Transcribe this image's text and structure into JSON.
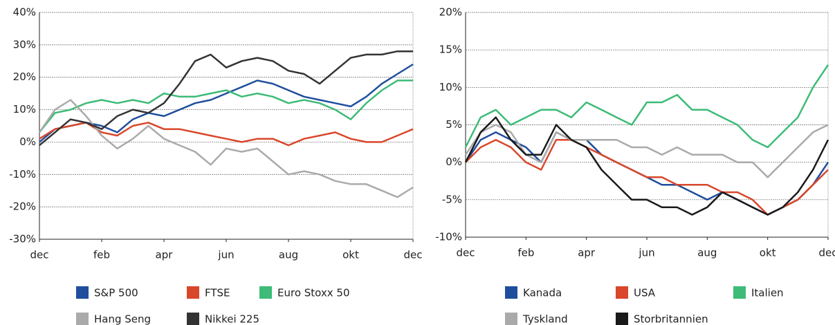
{
  "chart_data": [
    {
      "type": "line",
      "grid": true,
      "x": [
        0,
        0.5,
        1,
        1.5,
        2,
        2.5,
        3,
        3.5,
        4,
        4.5,
        5,
        5.5,
        6,
        6.5,
        7,
        7.5,
        8,
        8.5,
        9,
        9.5,
        10,
        10.5,
        11,
        11.5,
        12
      ],
      "xlim": [
        0,
        12
      ],
      "xticks": [
        {
          "value": 0,
          "label": "dec"
        },
        {
          "value": 2,
          "label": "feb"
        },
        {
          "value": 4,
          "label": "apr"
        },
        {
          "value": 6,
          "label": "jun"
        },
        {
          "value": 8,
          "label": "aug"
        },
        {
          "value": 10,
          "label": "okt"
        },
        {
          "value": 12,
          "label": "dec"
        }
      ],
      "ylim": [
        -30,
        40
      ],
      "yticks": [
        {
          "value": -30,
          "label": "-30%"
        },
        {
          "value": -20,
          "label": "-20%"
        },
        {
          "value": -10,
          "label": "-10%"
        },
        {
          "value": 0,
          "label": "0%"
        },
        {
          "value": 10,
          "label": "10%"
        },
        {
          "value": 20,
          "label": "20%"
        },
        {
          "value": 30,
          "label": "30%"
        },
        {
          "value": 40,
          "label": "40%"
        }
      ],
      "series": [
        {
          "name": "S&P 500",
          "color": "#1f4e9c",
          "values": [
            0,
            4,
            5,
            6,
            5,
            3,
            7,
            9,
            8,
            10,
            12,
            13,
            15,
            17,
            19,
            18,
            16,
            14,
            13,
            12,
            11,
            14,
            18,
            21,
            24
          ]
        },
        {
          "name": "FTSE",
          "color": "#d9472b",
          "values": [
            1,
            4,
            5,
            6,
            3,
            2,
            5,
            6,
            4,
            4,
            3,
            2,
            1,
            0,
            1,
            1,
            -1,
            1,
            2,
            3,
            1,
            0,
            0,
            2,
            4
          ]
        },
        {
          "name": "Euro Stoxx 50",
          "color": "#3dbb77",
          "values": [
            3,
            9,
            10,
            12,
            13,
            12,
            13,
            12,
            15,
            14,
            14,
            15,
            16,
            14,
            15,
            14,
            12,
            13,
            12,
            10,
            7,
            12,
            16,
            19,
            19
          ]
        },
        {
          "name": "Hang Seng",
          "color": "#aaaaaa",
          "values": [
            3,
            10,
            13,
            8,
            2,
            -2,
            1,
            5,
            1,
            -1,
            -3,
            -7,
            -2,
            -3,
            -2,
            -6,
            -10,
            -9,
            -10,
            -12,
            -13,
            -13,
            -15,
            -17,
            -14
          ]
        },
        {
          "name": "Nikkei 225",
          "color": "#333333",
          "values": [
            -1,
            3,
            7,
            6,
            4,
            8,
            10,
            9,
            12,
            18,
            25,
            27,
            23,
            25,
            26,
            25,
            22,
            21,
            18,
            22,
            26,
            27,
            27,
            28,
            28
          ]
        }
      ]
    },
    {
      "type": "line",
      "grid": true,
      "x": [
        0,
        0.5,
        1,
        1.5,
        2,
        2.5,
        3,
        3.5,
        4,
        4.5,
        5,
        5.5,
        6,
        6.5,
        7,
        7.5,
        8,
        8.5,
        9,
        9.5,
        10,
        10.5,
        11,
        11.5,
        12
      ],
      "xlim": [
        0,
        12
      ],
      "xticks": [
        {
          "value": 0,
          "label": "dec"
        },
        {
          "value": 2,
          "label": "feb"
        },
        {
          "value": 4,
          "label": "apr"
        },
        {
          "value": 6,
          "label": "jun"
        },
        {
          "value": 8,
          "label": "aug"
        },
        {
          "value": 10,
          "label": "okt"
        },
        {
          "value": 12,
          "label": "dec"
        }
      ],
      "ylim": [
        -10,
        20
      ],
      "yticks": [
        {
          "value": -10,
          "label": "-10%"
        },
        {
          "value": -5,
          "label": "-5%"
        },
        {
          "value": 0,
          "label": "0%"
        },
        {
          "value": 5,
          "label": "5%"
        },
        {
          "value": 10,
          "label": "10%"
        },
        {
          "value": 15,
          "label": "15%"
        },
        {
          "value": 20,
          "label": "20%"
        }
      ],
      "series": [
        {
          "name": "Kanada",
          "color": "#1f4e9c",
          "values": [
            0,
            3,
            4,
            3,
            2,
            0,
            4,
            3,
            3,
            1,
            0,
            -1,
            -2,
            -3,
            -3,
            -4,
            -5,
            -4,
            -5,
            -6,
            -7,
            -6,
            -5,
            -3,
            0
          ]
        },
        {
          "name": "USA",
          "color": "#d9472b",
          "values": [
            0,
            2,
            3,
            2,
            0,
            -1,
            3,
            3,
            2,
            1,
            0,
            -1,
            -2,
            -2,
            -3,
            -3,
            -3,
            -4,
            -4,
            -5,
            -7,
            -6,
            -5,
            -3,
            -1
          ]
        },
        {
          "name": "Italien",
          "color": "#3dbb77",
          "values": [
            2,
            6,
            7,
            5,
            6,
            7,
            7,
            6,
            8,
            7,
            6,
            5,
            8,
            8,
            9,
            7,
            7,
            6,
            5,
            3,
            2,
            4,
            6,
            10,
            13
          ]
        },
        {
          "name": "Tyskland",
          "color": "#aaaaaa",
          "values": [
            1,
            4,
            5,
            4,
            1,
            0,
            4,
            3,
            3,
            3,
            3,
            2,
            2,
            1,
            2,
            1,
            1,
            1,
            0,
            0,
            -2,
            0,
            2,
            4,
            5
          ]
        },
        {
          "name": "Storbritannien",
          "color": "#1a1a1a",
          "values": [
            0,
            4,
            6,
            3,
            1,
            1,
            5,
            3,
            2,
            -1,
            -3,
            -5,
            -5,
            -6,
            -6,
            -7,
            -6,
            -4,
            -5,
            -6,
            -7,
            -6,
            -4,
            -1,
            3
          ]
        }
      ]
    }
  ]
}
